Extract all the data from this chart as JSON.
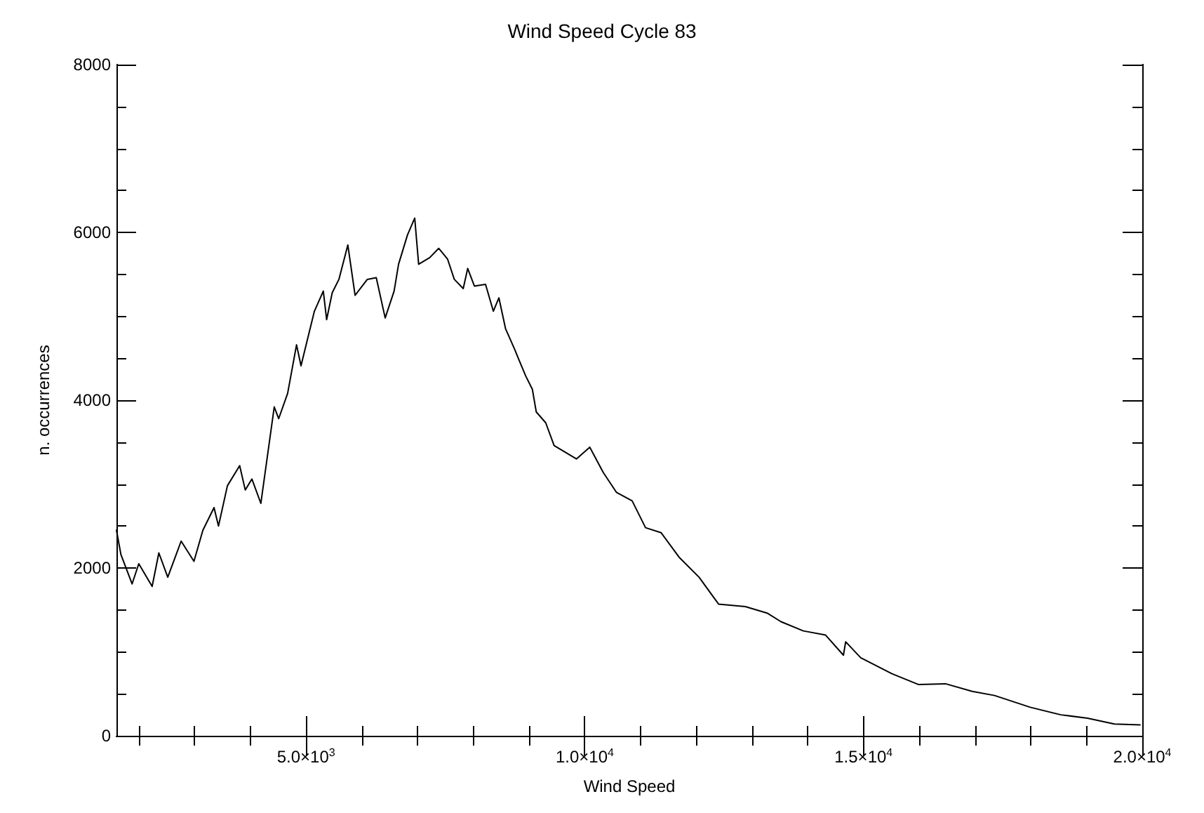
{
  "chart_data": {
    "type": "line",
    "title": "Wind Speed Cycle 83",
    "xlabel": "Wind Speed",
    "ylabel": "n. occurrences",
    "color": "#000000",
    "marker": "none",
    "grid": false,
    "xlim": [
      1600,
      20000
    ],
    "ylim": [
      0,
      8000
    ],
    "xticks": [
      {
        "value": 2000,
        "label": null
      },
      {
        "value": 3000,
        "label": null
      },
      {
        "value": 4000,
        "label": null
      },
      {
        "value": 5000,
        "label": "5.0×10$^{3}$"
      },
      {
        "value": 6000,
        "label": null
      },
      {
        "value": 7000,
        "label": null
      },
      {
        "value": 8000,
        "label": null
      },
      {
        "value": 9000,
        "label": null
      },
      {
        "value": 10000,
        "label": "1.0×10$^{4}$"
      },
      {
        "value": 11000,
        "label": null
      },
      {
        "value": 12000,
        "label": null
      },
      {
        "value": 13000,
        "label": null
      },
      {
        "value": 14000,
        "label": null
      },
      {
        "value": 15000,
        "label": "1.5×10$^{4}$"
      },
      {
        "value": 16000,
        "label": null
      },
      {
        "value": 17000,
        "label": null
      },
      {
        "value": 18000,
        "label": null
      },
      {
        "value": 19000,
        "label": null
      },
      {
        "value": 20000,
        "label": "2.0×10$^{4}$"
      }
    ],
    "yticks": [
      0,
      {
        "value": 500,
        "label": null
      },
      {
        "value": 1000,
        "label": null
      },
      {
        "value": 1500,
        "label": null
      },
      2000,
      {
        "value": 2500,
        "label": null
      },
      {
        "value": 3000,
        "label": null
      },
      {
        "value": 3500,
        "label": null
      },
      4000,
      {
        "value": 4500,
        "label": null
      },
      {
        "value": 5000,
        "label": null
      },
      {
        "value": 5500,
        "label": null
      },
      6000,
      {
        "value": 6500,
        "label": null
      },
      {
        "value": 7000,
        "label": null
      },
      {
        "value": 7500,
        "label": null
      },
      8000
    ],
    "x": [
      1600,
      1680,
      1880,
      2000,
      2240,
      2360,
      2520,
      2760,
      2990,
      3150,
      3350,
      3430,
      3590,
      3810,
      3910,
      4030,
      4190,
      4430,
      4510,
      4670,
      4830,
      4910,
      5150,
      5310,
      5370,
      5470,
      5590,
      5750,
      5880,
      6100,
      6260,
      6420,
      6580,
      6660,
      6820,
      6950,
      7020,
      7220,
      7380,
      7540,
      7660,
      7820,
      7900,
      8020,
      8220,
      8360,
      8460,
      8580,
      8740,
      8820,
      8940,
      9060,
      9130,
      9300,
      9450,
      9850,
      10090,
      10330,
      10570,
      10850,
      11090,
      11370,
      11690,
      12050,
      12400,
      12880,
      13280,
      13520,
      13920,
      14320,
      14640,
      14680,
      14950,
      15510,
      15990,
      16470,
      16950,
      17350,
      17990,
      18540,
      19020,
      19500,
      19960
    ],
    "values": [
      2450,
      2160,
      1810,
      2050,
      1780,
      2180,
      1890,
      2320,
      2080,
      2450,
      2720,
      2500,
      2980,
      3220,
      2930,
      3060,
      2770,
      3920,
      3780,
      4080,
      4660,
      4410,
      5060,
      5300,
      4960,
      5280,
      5440,
      5850,
      5250,
      5440,
      5460,
      4980,
      5300,
      5620,
      5970,
      6170,
      5620,
      5700,
      5810,
      5680,
      5440,
      5330,
      5570,
      5360,
      5380,
      5060,
      5220,
      4850,
      4610,
      4480,
      4290,
      4130,
      3860,
      3730,
      3460,
      3300,
      3440,
      3140,
      2900,
      2800,
      2480,
      2420,
      2130,
      1890,
      1570,
      1540,
      1460,
      1360,
      1250,
      1200,
      960,
      1120,
      930,
      740,
      610,
      620,
      530,
      480,
      340,
      250,
      210,
      140,
      130
    ]
  }
}
